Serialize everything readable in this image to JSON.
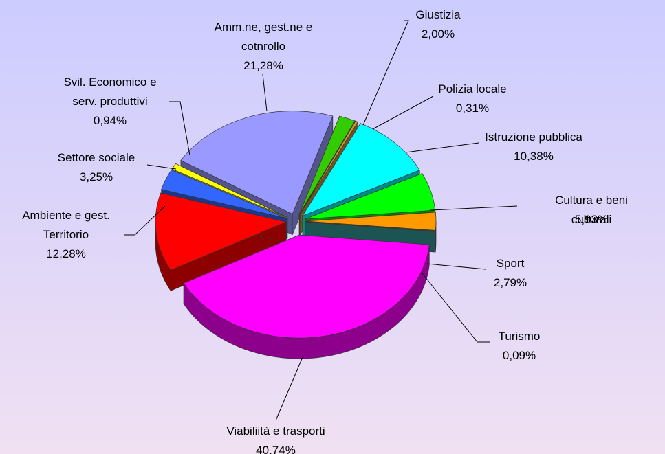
{
  "chart_data": {
    "type": "pie",
    "categories": [
      "Giustizia",
      "Polizia locale",
      "Istruzione pubblica",
      "Cultura e beni culturali",
      "Sport",
      "Turismo",
      "Viabiliità e trasporti",
      "Ambiente e gest.\nTerritorio",
      "Settore sociale",
      "Svil. Economico e\nserv. produttivi",
      "Amm.ne, gest.ne e\ncotnrollo"
    ],
    "values": [
      2.0,
      0.31,
      10.38,
      5.93,
      2.79,
      0.09,
      40.74,
      12.28,
      3.25,
      0.94,
      21.28
    ],
    "value_labels": [
      "2,00%",
      "0,31%",
      "10,38%",
      "5,93%",
      "2,79%",
      "0,09%",
      "40,74%",
      "12,28%",
      "3,25%",
      "0,94%",
      "21,28%"
    ],
    "colors": [
      "#33cc00",
      "#cc9933",
      "#00ffff",
      "#00ff00",
      "#ff9900",
      "#339999",
      "#ff00ff",
      "#ff0000",
      "#3366ff",
      "#ffff00",
      "#9999ff"
    ]
  }
}
